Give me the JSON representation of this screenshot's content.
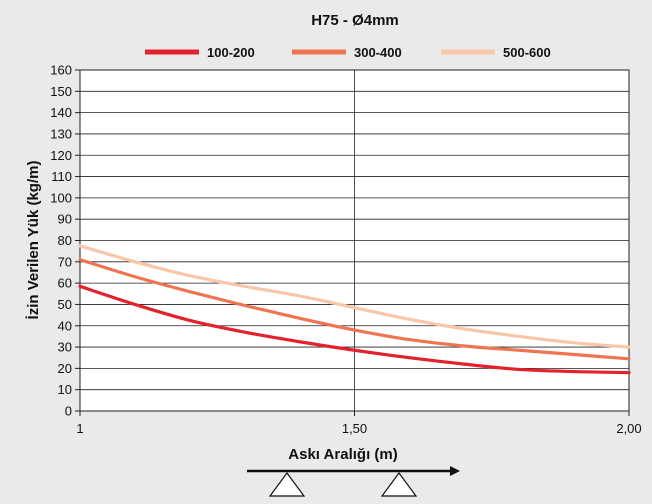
{
  "chart_data": {
    "type": "line",
    "title": "H75 - Ø4mm",
    "xlabel": "Askı Aralığı (m)",
    "ylabel": "İzin Verilen Yük (kg/m)",
    "xlim": [
      1,
      2
    ],
    "ylim": [
      0,
      160
    ],
    "x_ticks": [
      1,
      1.5,
      2
    ],
    "x_tick_labels": [
      "1",
      "1,50",
      "2,00"
    ],
    "y_ticks": [
      0,
      10,
      20,
      30,
      40,
      50,
      60,
      70,
      80,
      90,
      100,
      110,
      120,
      130,
      140,
      150,
      160
    ],
    "grid": true,
    "legend_position": "top",
    "series": [
      {
        "name": "100-200",
        "color": "#e3222d",
        "x": [
          1.0,
          1.1,
          1.2,
          1.3,
          1.4,
          1.5,
          1.6,
          1.7,
          1.8,
          1.9,
          2.0
        ],
        "y": [
          58.5,
          50,
          42.5,
          37,
          32.5,
          28.5,
          25,
          22,
          19.5,
          18.5,
          18
        ]
      },
      {
        "name": "300-400",
        "color": "#ef7552",
        "x": [
          1.0,
          1.1,
          1.2,
          1.3,
          1.4,
          1.5,
          1.6,
          1.7,
          1.8,
          1.9,
          2.0
        ],
        "y": [
          71,
          63,
          56,
          49.5,
          43.5,
          38,
          33.5,
          30.5,
          28.5,
          26.5,
          24.5
        ]
      },
      {
        "name": "500-600",
        "color": "#f8c6a8",
        "x": [
          1.0,
          1.1,
          1.2,
          1.3,
          1.4,
          1.5,
          1.6,
          1.7,
          1.8,
          1.9,
          2.0
        ],
        "y": [
          77.5,
          70,
          63.5,
          58.5,
          54,
          48.5,
          43,
          38.5,
          35,
          32,
          30
        ]
      }
    ]
  }
}
